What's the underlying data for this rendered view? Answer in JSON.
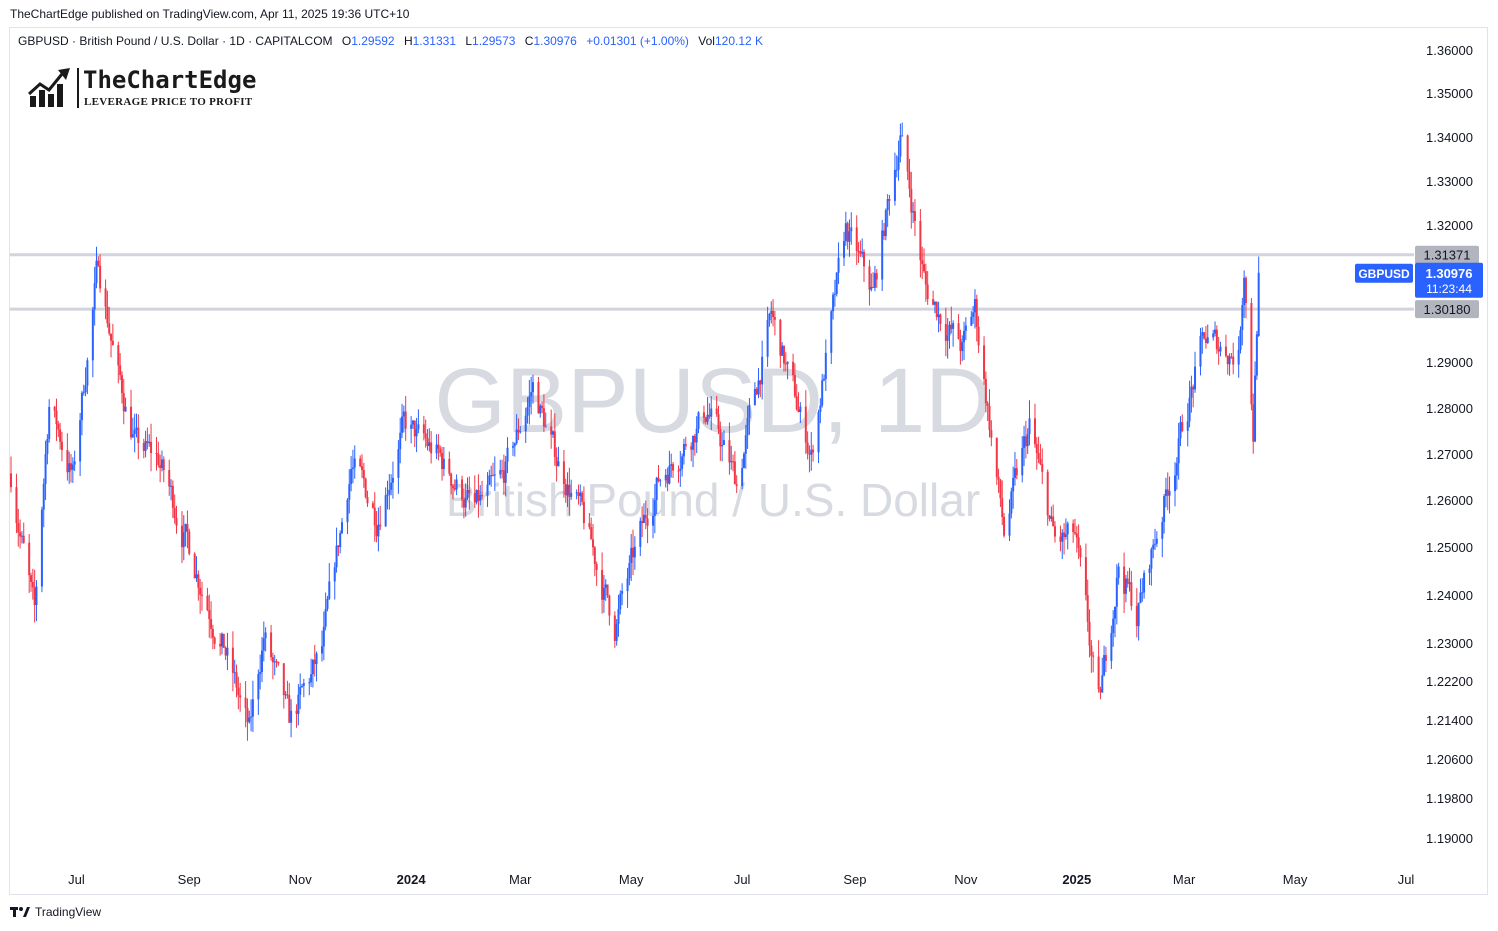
{
  "publish_line": "TheChartEdge published on TradingView.com, Apr 11, 2025 19:36 UTC+10",
  "legend": {
    "symbol": "GBPUSD · British Pound / U.S. Dollar · 1D · CAPITALCOM",
    "o_label": "O",
    "o_value": "1.29592",
    "h_label": "H",
    "h_value": "1.31331",
    "l_label": "L",
    "l_value": "1.29573",
    "c_label": "C",
    "c_value": "1.30976",
    "change": "+0.01301 (+1.00%)",
    "vol_label": "Vol",
    "vol_value": "120.12 K"
  },
  "logo": {
    "name": "TheChartEdge",
    "tagline": "LEVERAGE PRICE TO PROFIT"
  },
  "watermark": {
    "line1": "GBPUSD, 1D",
    "line2": "British Pound / U.S. Dollar"
  },
  "footer": {
    "brand": "TradingView",
    "icon": "tradingview-logo-icon"
  },
  "colors": {
    "up": "#2962ff",
    "down": "#f23645",
    "level_line": "#d1d4dc",
    "badge_grey": "#b2b5be",
    "badge_blue": "#2962ff"
  },
  "chart_data": {
    "type": "candlestick",
    "symbol": "GBPUSD",
    "timeframe": "1D",
    "y_ticks": [
      "1.36000",
      "1.35000",
      "1.34000",
      "1.33000",
      "1.32000",
      "1.31371",
      "1.30976",
      "1.30180",
      "1.29000",
      "1.28000",
      "1.27000",
      "1.26000",
      "1.25000",
      "1.24000",
      "1.23000",
      "1.22200",
      "1.21400",
      "1.20600",
      "1.19800",
      "1.19000"
    ],
    "x_ticks": [
      {
        "label": "Jul",
        "date": "2023-07-01",
        "bold": false
      },
      {
        "label": "Sep",
        "date": "2023-09-01",
        "bold": false
      },
      {
        "label": "Nov",
        "date": "2023-11-01",
        "bold": false
      },
      {
        "label": "2024",
        "date": "2024-01-01",
        "bold": true
      },
      {
        "label": "Mar",
        "date": "2024-03-01",
        "bold": false
      },
      {
        "label": "May",
        "date": "2024-05-01",
        "bold": false
      },
      {
        "label": "Jul",
        "date": "2024-07-01",
        "bold": false
      },
      {
        "label": "Sep",
        "date": "2024-09-01",
        "bold": false
      },
      {
        "label": "Nov",
        "date": "2024-11-01",
        "bold": false
      },
      {
        "label": "2025",
        "date": "2025-01-01",
        "bold": true
      },
      {
        "label": "Mar",
        "date": "2025-03-01",
        "bold": false
      },
      {
        "label": "May",
        "date": "2025-05-01",
        "bold": false
      },
      {
        "label": "Jul",
        "date": "2025-07-01",
        "bold": false
      }
    ],
    "horizontal_levels": [
      1.31371,
      1.3018
    ],
    "price_anchors": [
      {
        "date": "2023-05-26",
        "price": 1.266
      },
      {
        "date": "2023-06-08",
        "price": 1.235
      },
      {
        "date": "2023-06-16",
        "price": 1.282
      },
      {
        "date": "2023-06-29",
        "price": 1.265
      },
      {
        "date": "2023-07-13",
        "price": 1.312
      },
      {
        "date": "2023-07-24",
        "price": 1.287
      },
      {
        "date": "2023-08-03",
        "price": 1.272
      },
      {
        "date": "2023-08-15",
        "price": 1.269
      },
      {
        "date": "2023-08-25",
        "price": 1.258
      },
      {
        "date": "2023-09-22",
        "price": 1.227
      },
      {
        "date": "2023-10-04",
        "price": 1.211
      },
      {
        "date": "2023-10-12",
        "price": 1.232
      },
      {
        "date": "2023-10-26",
        "price": 1.213
      },
      {
        "date": "2023-11-13",
        "price": 1.228
      },
      {
        "date": "2023-11-29",
        "price": 1.268
      },
      {
        "date": "2023-12-13",
        "price": 1.257
      },
      {
        "date": "2023-12-28",
        "price": 1.276
      },
      {
        "date": "2024-01-15",
        "price": 1.27
      },
      {
        "date": "2024-02-05",
        "price": 1.258
      },
      {
        "date": "2024-02-20",
        "price": 1.264
      },
      {
        "date": "2024-03-08",
        "price": 1.285
      },
      {
        "date": "2024-03-20",
        "price": 1.27
      },
      {
        "date": "2024-04-01",
        "price": 1.26
      },
      {
        "date": "2024-04-22",
        "price": 1.234
      },
      {
        "date": "2024-05-15",
        "price": 1.264
      },
      {
        "date": "2024-06-12",
        "price": 1.28
      },
      {
        "date": "2024-06-28",
        "price": 1.264
      },
      {
        "date": "2024-07-17",
        "price": 1.3
      },
      {
        "date": "2024-08-08",
        "price": 1.27
      },
      {
        "date": "2024-08-27",
        "price": 1.319
      },
      {
        "date": "2024-09-11",
        "price": 1.305
      },
      {
        "date": "2024-09-26",
        "price": 1.341
      },
      {
        "date": "2024-10-10",
        "price": 1.306
      },
      {
        "date": "2024-10-30",
        "price": 1.293
      },
      {
        "date": "2024-11-06",
        "price": 1.302
      },
      {
        "date": "2024-11-22",
        "price": 1.253
      },
      {
        "date": "2024-12-06",
        "price": 1.276
      },
      {
        "date": "2024-12-20",
        "price": 1.251
      },
      {
        "date": "2024-12-31",
        "price": 1.252
      },
      {
        "date": "2025-01-13",
        "price": 1.216
      },
      {
        "date": "2025-01-24",
        "price": 1.247
      },
      {
        "date": "2025-02-03",
        "price": 1.236
      },
      {
        "date": "2025-02-20",
        "price": 1.263
      },
      {
        "date": "2025-03-12",
        "price": 1.295
      },
      {
        "date": "2025-03-31",
        "price": 1.292
      },
      {
        "date": "2025-04-03",
        "price": 1.312
      },
      {
        "date": "2025-04-08",
        "price": 1.276
      },
      {
        "date": "2025-04-11",
        "price": 1.31
      }
    ],
    "last_candle": {
      "date": "2025-04-11",
      "open": 1.29592,
      "high": 1.31331,
      "low": 1.29573,
      "close": 1.30976
    },
    "price_badges": [
      {
        "value": "1.31371",
        "kind": "level"
      },
      {
        "label": "GBPUSD",
        "value": "1.30976",
        "countdown": "11:23:44",
        "kind": "last"
      },
      {
        "value": "1.30180",
        "kind": "level"
      }
    ],
    "grid": false
  }
}
